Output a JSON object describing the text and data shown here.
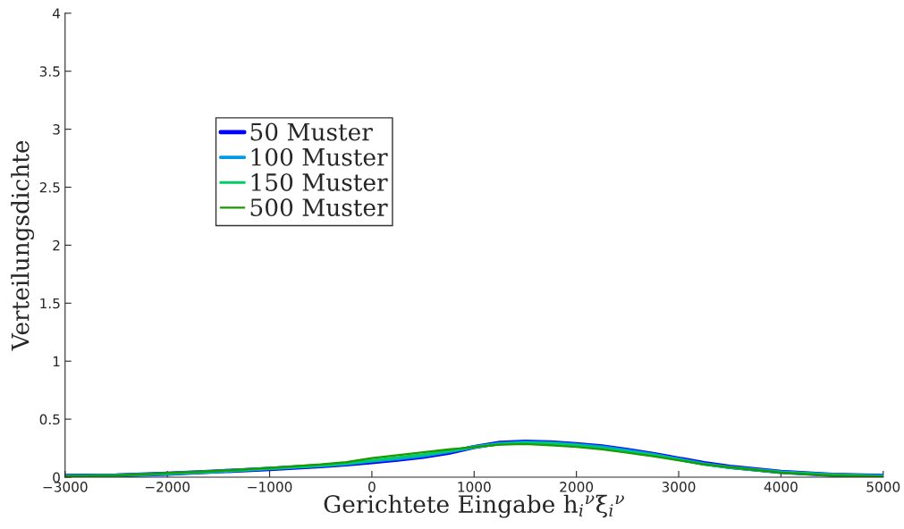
{
  "chart_data": {
    "type": "line",
    "xlabel": "Gerichtete Eingabe h$_{i}$$^{ν}$ξ$_{i}$$^{ν}$",
    "ylabel": "Verteilungsdichte",
    "x": [
      -3000,
      -2500,
      -2000,
      -1500,
      -1000,
      -500,
      -250,
      0,
      250,
      500,
      750,
      1000,
      1250,
      1500,
      1750,
      2000,
      2250,
      2500,
      2750,
      3000,
      3250,
      3500,
      4000,
      4500,
      5000
    ],
    "series": [
      {
        "name": "50 Muster",
        "color": "#0000ff",
        "values": [
          0.01,
          0.015,
          0.03,
          0.05,
          0.07,
          0.095,
          0.11,
          0.13,
          0.15,
          0.175,
          0.21,
          0.26,
          0.295,
          0.305,
          0.3,
          0.285,
          0.265,
          0.235,
          0.2,
          0.16,
          0.12,
          0.09,
          0.045,
          0.02,
          0.01
        ]
      },
      {
        "name": "100 Muster",
        "color": "#0099e6",
        "values": [
          0.01,
          0.015,
          0.03,
          0.05,
          0.075,
          0.1,
          0.115,
          0.14,
          0.16,
          0.185,
          0.22,
          0.26,
          0.29,
          0.3,
          0.295,
          0.28,
          0.26,
          0.23,
          0.195,
          0.155,
          0.115,
          0.085,
          0.045,
          0.02,
          0.01
        ]
      },
      {
        "name": "150 Muster",
        "color": "#00cc66",
        "values": [
          0.01,
          0.015,
          0.03,
          0.05,
          0.075,
          0.1,
          0.12,
          0.145,
          0.17,
          0.195,
          0.225,
          0.26,
          0.285,
          0.295,
          0.29,
          0.275,
          0.25,
          0.22,
          0.19,
          0.15,
          0.11,
          0.085,
          0.04,
          0.02,
          0.008
        ]
      },
      {
        "name": "500 Muster",
        "color": "#1a9900",
        "values": [
          0.01,
          0.015,
          0.035,
          0.055,
          0.08,
          0.11,
          0.13,
          0.165,
          0.19,
          0.215,
          0.24,
          0.26,
          0.28,
          0.285,
          0.275,
          0.26,
          0.24,
          0.21,
          0.18,
          0.145,
          0.11,
          0.085,
          0.04,
          0.015,
          0.005
        ]
      }
    ],
    "xlim": [
      -3000,
      5000
    ],
    "xticks": [
      {
        "value": -3000,
        "label": "−3000"
      },
      {
        "value": -2000,
        "label": "−2000"
      },
      {
        "value": -1000,
        "label": "−1000"
      },
      0,
      1000,
      2000,
      3000,
      4000,
      5000
    ],
    "ylim": [
      0,
      4
    ],
    "yticks": [
      0,
      0.5,
      1,
      1.5,
      2,
      2.5,
      3,
      3.5,
      4
    ],
    "grid": false,
    "legend": "top left",
    "line_style": "solid",
    "marker": "none"
  }
}
